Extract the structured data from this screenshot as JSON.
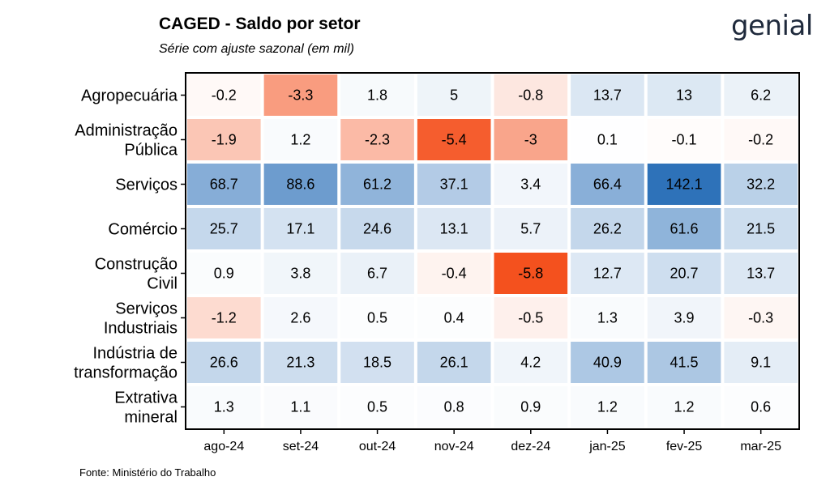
{
  "header": {
    "title": "CAGED - Saldo por setor",
    "subtitle": "Série com ajuste sazonal (em mil)",
    "logo_text": "genial"
  },
  "footer": {
    "source": "Fonte: Ministério do Trabalho"
  },
  "colors": {
    "negative": "#f4511e",
    "positive": "#2a6fb8",
    "neutral": "#ffffff"
  },
  "chart_data": {
    "type": "heatmap",
    "title": "CAGED - Saldo por setor",
    "subtitle": "Série com ajuste sazonal (em mil)",
    "columns": [
      "ago-24",
      "set-24",
      "out-24",
      "nov-24",
      "dez-24",
      "jan-25",
      "fev-25",
      "mar-25"
    ],
    "rows": [
      {
        "label": [
          "Agropecuária"
        ],
        "values": [
          -0.2,
          -3.3,
          1.8,
          5,
          -0.8,
          13.7,
          13,
          6.2
        ]
      },
      {
        "label": [
          "Administração",
          "Pública"
        ],
        "values": [
          -1.9,
          1.2,
          -2.3,
          -5.4,
          -3,
          0.1,
          -0.1,
          -0.2
        ]
      },
      {
        "label": [
          "Serviços"
        ],
        "values": [
          68.7,
          88.6,
          61.2,
          37.1,
          3.4,
          66.4,
          142.1,
          32.2
        ]
      },
      {
        "label": [
          "Comércio"
        ],
        "values": [
          25.7,
          17.1,
          24.6,
          13.1,
          5.7,
          26.2,
          61.6,
          21.5
        ]
      },
      {
        "label": [
          "Construção",
          "Civil"
        ],
        "values": [
          0.9,
          3.8,
          6.7,
          -0.4,
          -5.8,
          12.7,
          20.7,
          13.7
        ]
      },
      {
        "label": [
          "Serviços",
          "Industriais"
        ],
        "values": [
          -1.2,
          2.6,
          0.5,
          0.4,
          -0.5,
          1.3,
          3.9,
          -0.3
        ]
      },
      {
        "label": [
          "Indústria de",
          "transformação"
        ],
        "values": [
          26.6,
          21.3,
          18.5,
          26.1,
          4.2,
          40.9,
          41.5,
          9.1
        ]
      },
      {
        "label": [
          "Extrativa",
          "mineral"
        ],
        "values": [
          1.3,
          1.1,
          0.5,
          0.8,
          0.9,
          1.2,
          1.2,
          0.6
        ]
      }
    ]
  }
}
